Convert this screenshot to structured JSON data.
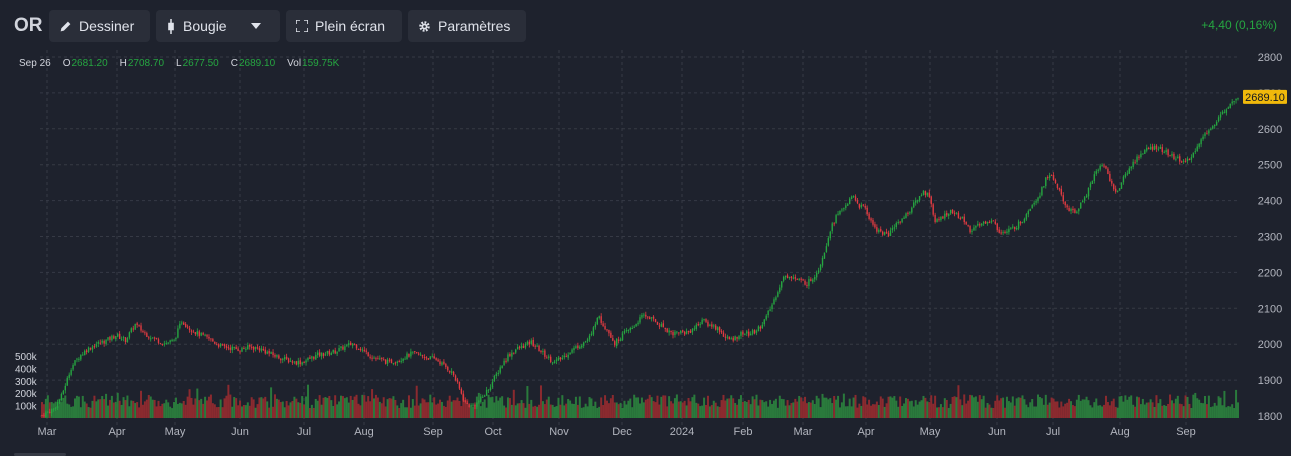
{
  "toolbar": {
    "symbol": "OR",
    "draw_label": "Dessiner",
    "chart_style_label": "Bougie",
    "fullscreen_label": "Plein écran",
    "settings_label": "Paramètres",
    "change_text": "+4,40 (0,16%)"
  },
  "legend": {
    "date": "Sep 26",
    "open_key": "O",
    "open": "2681.20",
    "high_key": "H",
    "high": "2708.70",
    "low_key": "L",
    "low": "2677.50",
    "close_key": "C",
    "close": "2689.10",
    "vol_key": "Vol",
    "vol": "159.75K"
  },
  "colors": {
    "up": "#26a641",
    "down": "#e23b41",
    "vol_up": "#2a7a3c",
    "vol_down": "#8b2a2f",
    "last_price_bg": "#f0b90b",
    "background": "#1e222d",
    "grid": "#363a45"
  },
  "chart_data": {
    "type": "candlestick",
    "price_axis": {
      "ticks": [
        "2800",
        "2700",
        "2600",
        "2500",
        "2400",
        "2300",
        "2200",
        "2100",
        "2000",
        "1900",
        "1800"
      ],
      "range": [
        1800,
        2800
      ]
    },
    "volume_axis": {
      "ticks": [
        "500k",
        "400k",
        "300k",
        "200k",
        "100k"
      ],
      "range": [
        0,
        500000
      ]
    },
    "time_axis": {
      "ticks": [
        "Mar",
        "Apr",
        "May",
        "Jun",
        "Jul",
        "Aug",
        "Sep",
        "Oct",
        "Nov",
        "Dec",
        "2024",
        "Feb",
        "Mar",
        "Apr",
        "May",
        "Jun",
        "Jul",
        "Aug",
        "Sep"
      ]
    },
    "last_price_label": "2689.10",
    "close_path": [
      [
        0,
        1802
      ],
      [
        6,
        1820
      ],
      [
        10,
        1855
      ],
      [
        15,
        1935
      ],
      [
        19,
        1965
      ],
      [
        23,
        1985
      ],
      [
        28,
        2000
      ],
      [
        33,
        2010
      ],
      [
        38,
        2025
      ],
      [
        43,
        2012
      ],
      [
        48,
        2055
      ],
      [
        53,
        2030
      ],
      [
        58,
        2015
      ],
      [
        63,
        2002
      ],
      [
        68,
        2010
      ],
      [
        72,
        2065
      ],
      [
        76,
        2045
      ],
      [
        80,
        2030
      ],
      [
        86,
        2015
      ],
      [
        92,
        1995
      ],
      [
        97,
        1990
      ],
      [
        102,
        1985
      ],
      [
        107,
        1992
      ],
      [
        112,
        1988
      ],
      [
        118,
        1972
      ],
      [
        124,
        1960
      ],
      [
        130,
        1950
      ],
      [
        134,
        1950
      ],
      [
        138,
        1960
      ],
      [
        142,
        1970
      ],
      [
        147,
        1975
      ],
      [
        151,
        1980
      ],
      [
        155,
        1990
      ],
      [
        160,
        2002
      ],
      [
        164,
        1988
      ],
      [
        168,
        1972
      ],
      [
        172,
        1960
      ],
      [
        178,
        1950
      ],
      [
        183,
        1955
      ],
      [
        187,
        1965
      ],
      [
        191,
        1975
      ],
      [
        195,
        1968
      ],
      [
        199,
        1962
      ],
      [
        203,
        1958
      ],
      [
        206,
        1945
      ],
      [
        209,
        1932
      ],
      [
        212,
        1915
      ],
      [
        215,
        1875
      ],
      [
        218,
        1835
      ],
      [
        221,
        1828
      ],
      [
        224,
        1835
      ],
      [
        228,
        1860
      ],
      [
        232,
        1895
      ],
      [
        236,
        1935
      ],
      [
        240,
        1968
      ],
      [
        244,
        1985
      ],
      [
        248,
        1995
      ],
      [
        252,
        2005
      ],
      [
        256,
        1985
      ],
      [
        260,
        1965
      ],
      [
        264,
        1950
      ],
      [
        268,
        1962
      ],
      [
        272,
        1980
      ],
      [
        276,
        1995
      ],
      [
        280,
        2008
      ],
      [
        283,
        2025
      ],
      [
        286,
        2080
      ],
      [
        289,
        2055
      ],
      [
        292,
        2035
      ],
      [
        295,
        2002
      ],
      [
        298,
        2020
      ],
      [
        301,
        2035
      ],
      [
        304,
        2045
      ],
      [
        307,
        2065
      ],
      [
        310,
        2080
      ],
      [
        313,
        2075
      ],
      [
        316,
        2062
      ],
      [
        319,
        2052
      ],
      [
        322,
        2040
      ],
      [
        325,
        2030
      ],
      [
        328,
        2035
      ],
      [
        331,
        2032
      ],
      [
        334,
        2038
      ],
      [
        337,
        2050
      ],
      [
        340,
        2068
      ],
      [
        343,
        2055
      ],
      [
        346,
        2050
      ],
      [
        349,
        2040
      ],
      [
        352,
        2018
      ],
      [
        355,
        2012
      ],
      [
        358,
        2022
      ],
      [
        361,
        2032
      ],
      [
        364,
        2028
      ],
      [
        367,
        2035
      ],
      [
        370,
        2050
      ],
      [
        373,
        2075
      ],
      [
        376,
        2110
      ],
      [
        379,
        2150
      ],
      [
        382,
        2185
      ],
      [
        385,
        2192
      ],
      [
        388,
        2182
      ],
      [
        391,
        2175
      ],
      [
        394,
        2170
      ],
      [
        397,
        2185
      ],
      [
        400,
        2210
      ],
      [
        403,
        2260
      ],
      [
        406,
        2320
      ],
      [
        409,
        2355
      ],
      [
        412,
        2375
      ],
      [
        415,
        2395
      ],
      [
        418,
        2410
      ],
      [
        421,
        2385
      ],
      [
        424,
        2380
      ],
      [
        427,
        2340
      ],
      [
        430,
        2320
      ],
      [
        433,
        2310
      ],
      [
        436,
        2305
      ],
      [
        439,
        2330
      ],
      [
        442,
        2345
      ],
      [
        445,
        2360
      ],
      [
        448,
        2380
      ],
      [
        451,
        2405
      ],
      [
        454,
        2425
      ],
      [
        457,
        2415
      ],
      [
        460,
        2340
      ],
      [
        463,
        2350
      ],
      [
        466,
        2365
      ],
      [
        469,
        2370
      ],
      [
        472,
        2355
      ],
      [
        475,
        2345
      ],
      [
        478,
        2318
      ],
      [
        481,
        2325
      ],
      [
        484,
        2335
      ],
      [
        487,
        2345
      ],
      [
        490,
        2340
      ],
      [
        493,
        2315
      ],
      [
        496,
        2310
      ],
      [
        499,
        2320
      ],
      [
        502,
        2330
      ],
      [
        505,
        2345
      ],
      [
        508,
        2375
      ],
      [
        511,
        2398
      ],
      [
        514,
        2420
      ],
      [
        517,
        2460
      ],
      [
        520,
        2470
      ],
      [
        523,
        2440
      ],
      [
        526,
        2395
      ],
      [
        529,
        2375
      ],
      [
        532,
        2365
      ],
      [
        535,
        2390
      ],
      [
        538,
        2420
      ],
      [
        541,
        2460
      ],
      [
        544,
        2490
      ],
      [
        547,
        2500
      ],
      [
        550,
        2460
      ],
      [
        553,
        2420
      ],
      [
        556,
        2450
      ],
      [
        559,
        2480
      ],
      [
        562,
        2505
      ],
      [
        565,
        2525
      ],
      [
        568,
        2540
      ],
      [
        571,
        2545
      ],
      [
        574,
        2550
      ],
      [
        577,
        2540
      ],
      [
        580,
        2530
      ],
      [
        583,
        2520
      ],
      [
        586,
        2515
      ],
      [
        589,
        2505
      ],
      [
        592,
        2520
      ],
      [
        595,
        2555
      ],
      [
        598,
        2575
      ],
      [
        601,
        2600
      ],
      [
        604,
        2610
      ],
      [
        607,
        2635
      ],
      [
        610,
        2660
      ],
      [
        613,
        2680
      ],
      [
        616,
        2689.1
      ]
    ]
  }
}
